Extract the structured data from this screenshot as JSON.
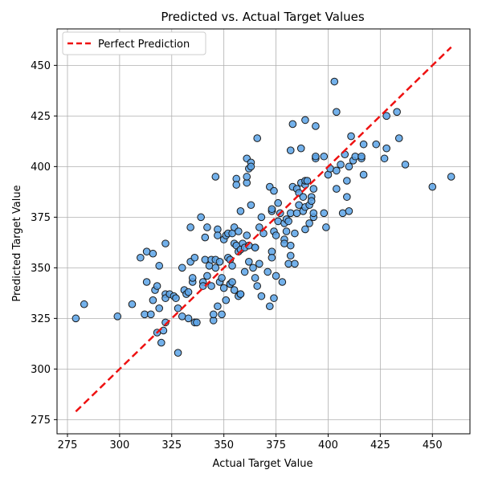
{
  "chart_data": {
    "type": "scatter",
    "title": "Predicted vs. Actual Target Values",
    "xlabel": "Actual Target Value",
    "ylabel": "Predicted Target Value",
    "xlim": [
      270,
      468
    ],
    "ylim": [
      268,
      468
    ],
    "xticks": [
      275,
      300,
      325,
      350,
      375,
      400,
      425,
      450
    ],
    "yticks": [
      275,
      300,
      325,
      350,
      375,
      400,
      425,
      450
    ],
    "grid": true,
    "legend": {
      "position": "top-left",
      "entries": [
        "Perfect Prediction"
      ]
    },
    "reference_line": {
      "name": "Perfect Prediction",
      "x": [
        279,
        459
      ],
      "y": [
        279,
        459
      ],
      "color": "#ee1111",
      "style": "dashed"
    },
    "point_color": "#5aa3e8",
    "point_edge_color": "#1a1a1a",
    "points": [
      [
        279,
        325
      ],
      [
        283,
        332
      ],
      [
        299,
        326
      ],
      [
        306,
        332
      ],
      [
        310,
        355
      ],
      [
        312,
        327
      ],
      [
        313,
        358
      ],
      [
        313,
        343
      ],
      [
        315,
        327
      ],
      [
        316,
        334
      ],
      [
        316,
        357
      ],
      [
        317,
        339
      ],
      [
        318,
        318
      ],
      [
        318,
        341
      ],
      [
        319,
        351
      ],
      [
        319,
        330
      ],
      [
        320,
        313
      ],
      [
        321,
        319
      ],
      [
        322,
        323
      ],
      [
        322,
        337
      ],
      [
        322,
        335
      ],
      [
        322,
        362
      ],
      [
        324,
        337
      ],
      [
        326,
        336
      ],
      [
        327,
        335
      ],
      [
        328,
        308
      ],
      [
        328,
        330
      ],
      [
        330,
        326
      ],
      [
        330,
        350
      ],
      [
        331,
        339
      ],
      [
        332,
        337
      ],
      [
        333,
        325
      ],
      [
        333,
        338
      ],
      [
        334,
        353
      ],
      [
        334,
        370
      ],
      [
        335,
        343
      ],
      [
        335,
        345
      ],
      [
        336,
        355
      ],
      [
        336,
        323
      ],
      [
        337,
        323
      ],
      [
        339,
        375
      ],
      [
        340,
        343
      ],
      [
        340,
        341
      ],
      [
        341,
        354
      ],
      [
        341,
        365
      ],
      [
        342,
        370
      ],
      [
        342,
        346
      ],
      [
        343,
        351
      ],
      [
        344,
        341
      ],
      [
        344,
        354
      ],
      [
        345,
        324
      ],
      [
        345,
        327
      ],
      [
        346,
        354
      ],
      [
        346,
        395
      ],
      [
        346,
        350
      ],
      [
        347,
        331
      ],
      [
        347,
        369
      ],
      [
        347,
        366
      ],
      [
        348,
        343
      ],
      [
        348,
        353
      ],
      [
        349,
        327
      ],
      [
        349,
        345
      ],
      [
        350,
        364
      ],
      [
        350,
        340
      ],
      [
        351,
        334
      ],
      [
        351,
        366
      ],
      [
        352,
        355
      ],
      [
        352,
        367
      ],
      [
        353,
        354
      ],
      [
        353,
        342
      ],
      [
        353,
        342
      ],
      [
        354,
        367
      ],
      [
        354,
        351
      ],
      [
        354,
        343
      ],
      [
        355,
        370
      ],
      [
        355,
        339
      ],
      [
        355,
        362
      ],
      [
        356,
        394
      ],
      [
        356,
        391
      ],
      [
        356,
        361
      ],
      [
        357,
        336
      ],
      [
        357,
        358
      ],
      [
        357,
        368
      ],
      [
        358,
        359
      ],
      [
        358,
        337
      ],
      [
        358,
        337
      ],
      [
        358,
        378
      ],
      [
        359,
        362
      ],
      [
        360,
        348
      ],
      [
        360,
        360
      ],
      [
        361,
        392
      ],
      [
        361,
        395
      ],
      [
        361,
        404
      ],
      [
        361,
        366
      ],
      [
        362,
        399
      ],
      [
        362,
        353
      ],
      [
        362,
        361
      ],
      [
        363,
        402
      ],
      [
        363,
        381
      ],
      [
        363,
        400
      ],
      [
        364,
        350
      ],
      [
        365,
        360
      ],
      [
        365,
        360
      ],
      [
        365,
        345
      ],
      [
        366,
        341
      ],
      [
        366,
        414
      ],
      [
        367,
        370
      ],
      [
        367,
        352
      ],
      [
        368,
        336
      ],
      [
        368,
        375
      ],
      [
        369,
        367
      ],
      [
        371,
        348
      ],
      [
        372,
        390
      ],
      [
        372,
        331
      ],
      [
        373,
        358
      ],
      [
        373,
        355
      ],
      [
        373,
        378
      ],
      [
        373,
        379
      ],
      [
        374,
        368
      ],
      [
        374,
        388
      ],
      [
        374,
        335
      ],
      [
        375,
        366
      ],
      [
        375,
        346
      ],
      [
        376,
        382
      ],
      [
        376,
        373
      ],
      [
        377,
        377
      ],
      [
        378,
        343
      ],
      [
        379,
        364
      ],
      [
        379,
        372
      ],
      [
        379,
        362
      ],
      [
        380,
        368
      ],
      [
        380,
        374
      ],
      [
        381,
        352
      ],
      [
        381,
        373
      ],
      [
        382,
        361
      ],
      [
        382,
        408
      ],
      [
        382,
        377
      ],
      [
        382,
        356
      ],
      [
        383,
        421
      ],
      [
        383,
        390
      ],
      [
        384,
        352
      ],
      [
        384,
        367
      ],
      [
        385,
        377
      ],
      [
        385,
        389
      ],
      [
        386,
        381
      ],
      [
        386,
        387
      ],
      [
        387,
        392
      ],
      [
        387,
        409
      ],
      [
        388,
        385
      ],
      [
        388,
        378
      ],
      [
        389,
        369
      ],
      [
        389,
        423
      ],
      [
        389,
        391
      ],
      [
        389,
        380
      ],
      [
        389,
        393
      ],
      [
        390,
        393
      ],
      [
        391,
        372
      ],
      [
        391,
        381
      ],
      [
        392,
        385
      ],
      [
        392,
        383
      ],
      [
        393,
        389
      ],
      [
        393,
        375
      ],
      [
        393,
        377
      ],
      [
        394,
        404
      ],
      [
        394,
        405
      ],
      [
        394,
        420
      ],
      [
        398,
        377
      ],
      [
        398,
        405
      ],
      [
        399,
        370
      ],
      [
        400,
        396
      ],
      [
        401,
        399
      ],
      [
        403,
        442
      ],
      [
        404,
        389
      ],
      [
        404,
        398
      ],
      [
        404,
        427
      ],
      [
        406,
        401
      ],
      [
        407,
        377
      ],
      [
        408,
        406
      ],
      [
        409,
        385
      ],
      [
        409,
        393
      ],
      [
        410,
        378
      ],
      [
        410,
        400
      ],
      [
        411,
        415
      ],
      [
        412,
        403
      ],
      [
        413,
        405
      ],
      [
        416,
        404
      ],
      [
        416,
        405
      ],
      [
        417,
        411
      ],
      [
        417,
        396
      ],
      [
        423,
        411
      ],
      [
        427,
        404
      ],
      [
        428,
        425
      ],
      [
        428,
        409
      ],
      [
        433,
        427
      ],
      [
        434,
        414
      ],
      [
        437,
        401
      ],
      [
        450,
        390
      ],
      [
        459,
        395
      ]
    ]
  }
}
